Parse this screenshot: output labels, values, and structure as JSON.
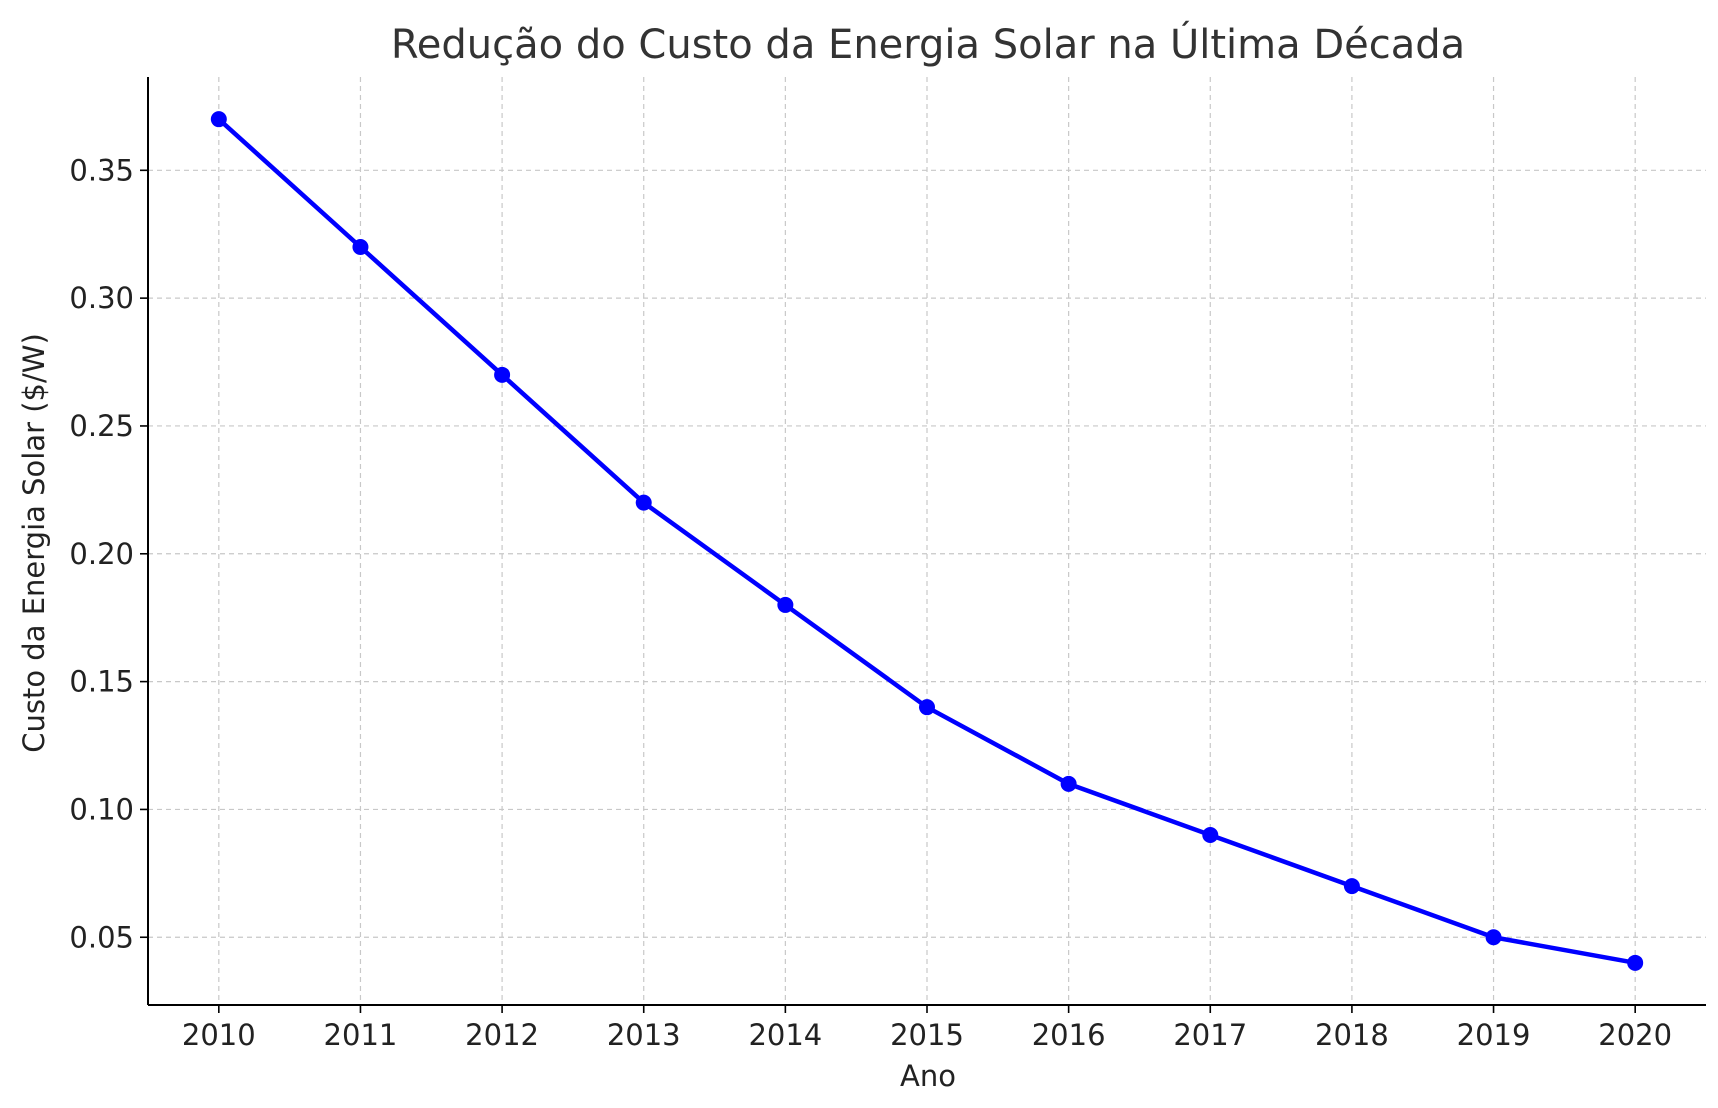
{
  "chart_data": {
    "type": "line",
    "title": "Redução do Custo da Energia Solar na Última Década",
    "xlabel": "Ano",
    "ylabel": "Custo da Energia Solar ($/W)",
    "x": [
      2010,
      2011,
      2012,
      2013,
      2014,
      2015,
      2016,
      2017,
      2018,
      2019,
      2020
    ],
    "x_tick_labels": [
      "2010",
      "2011",
      "2012",
      "2013",
      "2014",
      "2015",
      "2016",
      "2017",
      "2018",
      "2019",
      "2020"
    ],
    "y_ticks": [
      0.05,
      0.1,
      0.15,
      0.2,
      0.25,
      0.3,
      0.35
    ],
    "y_tick_labels": [
      "0.05",
      "0.10",
      "0.15",
      "0.20",
      "0.25",
      "0.30",
      "0.35"
    ],
    "series": [
      {
        "values": [
          0.37,
          0.32,
          0.27,
          0.22,
          0.18,
          0.14,
          0.11,
          0.09,
          0.07,
          0.05,
          0.04
        ],
        "color": "#0000ff",
        "marker": "circle"
      }
    ],
    "xlim": [
      2009.5,
      2020.5
    ],
    "ylim": [
      0.0235,
      0.3865
    ],
    "grid": true,
    "grid_style": "dashed",
    "legend": "none"
  }
}
